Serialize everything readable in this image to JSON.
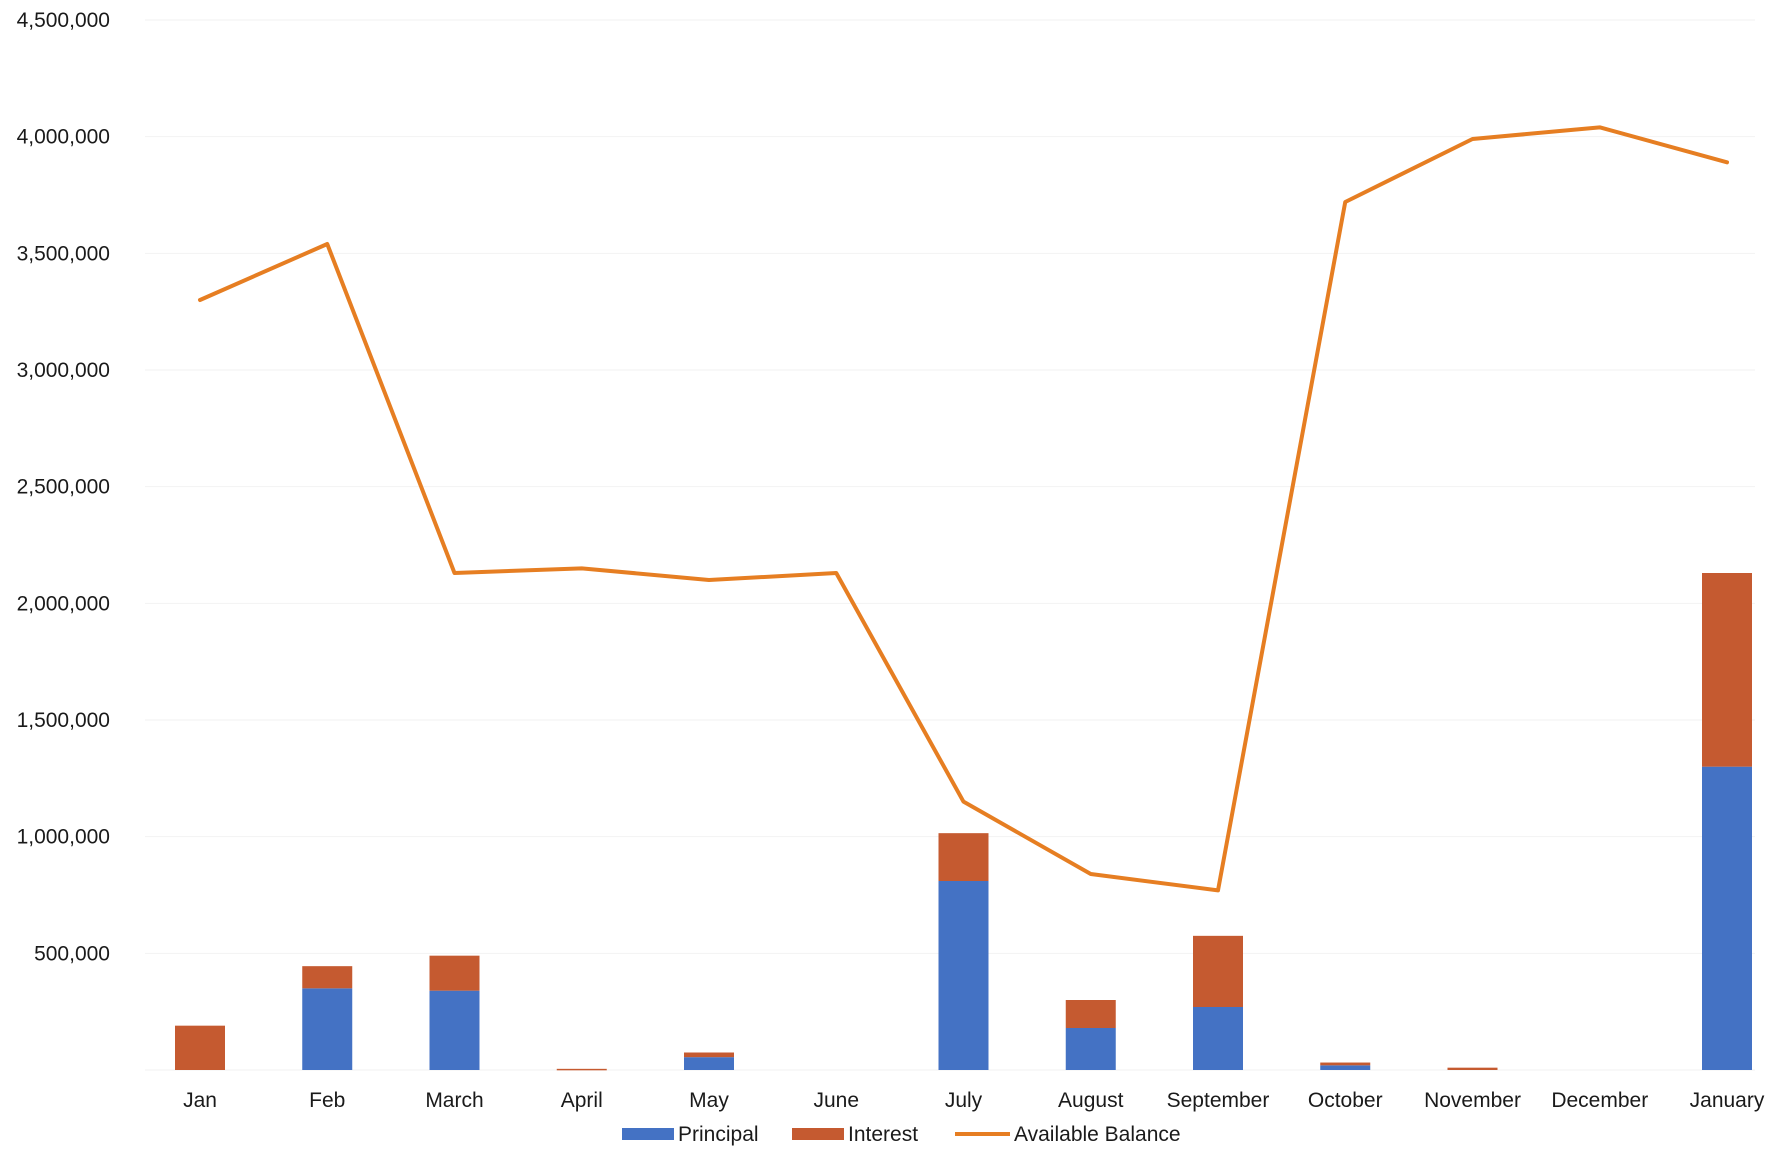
{
  "chart_data": {
    "type": "bar",
    "stacked": true,
    "categories": [
      "Jan",
      "Feb",
      "March",
      "April",
      "May",
      "June",
      "July",
      "August",
      "September",
      "October",
      "November",
      "December",
      "January"
    ],
    "series": [
      {
        "name": "Principal",
        "type": "bar",
        "color": "#4472C4",
        "values": [
          0,
          350000,
          340000,
          0,
          55000,
          0,
          810000,
          180000,
          270000,
          20000,
          0,
          0,
          1300000
        ]
      },
      {
        "name": "Interest",
        "type": "bar",
        "color": "#C55A30",
        "values": [
          190000,
          95000,
          150000,
          5000,
          20000,
          0,
          205000,
          120000,
          305000,
          12000,
          10000,
          0,
          830000
        ]
      },
      {
        "name": "Available Balance",
        "type": "line",
        "color": "#E67E22",
        "values": [
          3300000,
          3540000,
          2130000,
          2150000,
          2100000,
          2130000,
          1150000,
          840000,
          770000,
          3720000,
          3990000,
          4040000,
          3890000
        ]
      }
    ],
    "y_ticks": [
      "",
      "500,000",
      "1,000,000",
      "1,500,000",
      "2,000,000",
      "2,500,000",
      "3,000,000",
      "3,500,000",
      "4,000,000",
      "4,500,000"
    ],
    "ylim": [
      0,
      4500000
    ],
    "grid": true,
    "legend": "bottom"
  }
}
